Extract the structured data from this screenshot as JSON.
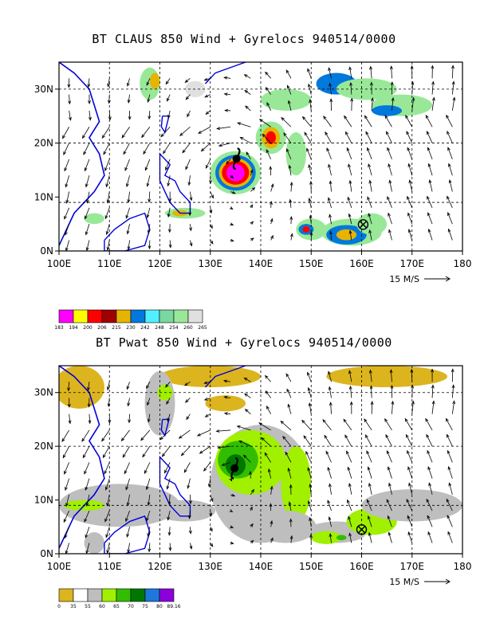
{
  "chart_data": [
    {
      "type": "map",
      "title": "BT CLAUS 850 Wind + Gyrelocs 940514/0000",
      "xlim": [
        100,
        180
      ],
      "ylim": [
        0,
        35
      ],
      "x_ticks": [
        100,
        110,
        120,
        130,
        140,
        150,
        160,
        170,
        180
      ],
      "x_tick_labels": [
        "100E",
        "110E",
        "120E",
        "130E",
        "140E",
        "150E",
        "160E",
        "170E",
        "180"
      ],
      "y_ticks": [
        0,
        10,
        20,
        30
      ],
      "y_tick_labels": [
        "0N",
        "10N",
        "20N",
        "30N"
      ],
      "grid_lines_x": [
        110,
        120,
        130,
        140,
        150,
        160,
        170
      ],
      "grid_lines_y": [
        9,
        20,
        30
      ],
      "vector_reference": "15 M/S",
      "gyre_markers": [
        {
          "kind": "cyclone",
          "lon": 135.2,
          "lat": 17.1
        },
        {
          "kind": "cross-circle",
          "lon": 160.3,
          "lat": 4.9
        }
      ],
      "colorbar": {
        "labels": [
          "183",
          "194",
          "200",
          "206",
          "215",
          "230",
          "242",
          "248",
          "254",
          "260",
          "265"
        ],
        "colors": [
          "#ff00ff",
          "#ffff00",
          "#ff0000",
          "#a00000",
          "#e6b400",
          "#0078dc",
          "#50f0ff",
          "#78d8a0",
          "#98e898",
          "#e0e0e0"
        ]
      }
    },
    {
      "type": "map",
      "title": "BT Pwat 850 Wind + Gyrelocs 940514/0000",
      "xlim": [
        100,
        180
      ],
      "ylim": [
        0,
        35
      ],
      "x_ticks": [
        100,
        110,
        120,
        130,
        140,
        150,
        160,
        170,
        180
      ],
      "x_tick_labels": [
        "100E",
        "110E",
        "120E",
        "130E",
        "140E",
        "150E",
        "160E",
        "170E",
        "180"
      ],
      "y_ticks": [
        0,
        10,
        20,
        30
      ],
      "y_tick_labels": [
        "0N",
        "10N",
        "20N",
        "30N"
      ],
      "grid_lines_x": [
        110,
        120,
        130,
        140,
        150,
        160,
        170
      ],
      "grid_lines_y": [
        9,
        20,
        30
      ],
      "vector_reference": "15 M/S",
      "gyre_markers": [
        {
          "kind": "cyclone",
          "lon": 134.8,
          "lat": 15.9
        },
        {
          "kind": "cross-circle",
          "lon": 160.0,
          "lat": 4.5
        }
      ],
      "colorbar": {
        "labels": [
          "0",
          "35",
          "55",
          "60",
          "65",
          "70",
          "75",
          "80",
          "89.16"
        ],
        "colors": [
          "#dcb41e",
          "#ffffff",
          "#bebebe",
          "#a0f000",
          "#32be00",
          "#007800",
          "#1e78dc",
          "#8c00dc"
        ]
      }
    }
  ]
}
